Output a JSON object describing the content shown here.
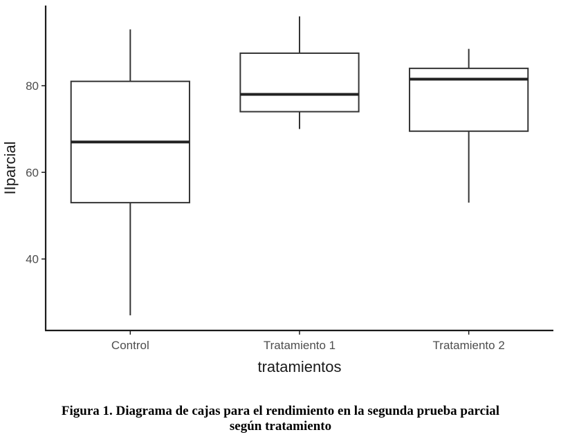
{
  "chart_data": {
    "type": "boxplot",
    "xlabel": "tratamientos",
    "ylabel": "IIparcial",
    "ylim": [
      23.5,
      98.5
    ],
    "yticks": [
      40,
      60,
      80
    ],
    "grid": false,
    "categories": [
      "Control",
      "Tratamiento 1",
      "Tratamiento 2"
    ],
    "boxes": [
      {
        "name": "Control",
        "min": 27,
        "q1": 53,
        "median": 67,
        "q3": 81,
        "max": 93
      },
      {
        "name": "Tratamiento 1",
        "min": 70,
        "q1": 74,
        "median": 78,
        "q3": 87.5,
        "max": 96
      },
      {
        "name": "Tratamiento 2",
        "min": 53,
        "q1": 69.5,
        "median": 81.5,
        "q3": 84,
        "max": 88.5
      }
    ]
  },
  "caption": {
    "line1": "Figura 1. Diagrama de cajas para el rendimiento en la segunda prueba parcial",
    "line2": "según tratamiento"
  },
  "colors": {
    "box_stroke": "#333333",
    "median": "#222222",
    "axis": "#1a1a1a",
    "tick_label": "#4d4d4d"
  }
}
